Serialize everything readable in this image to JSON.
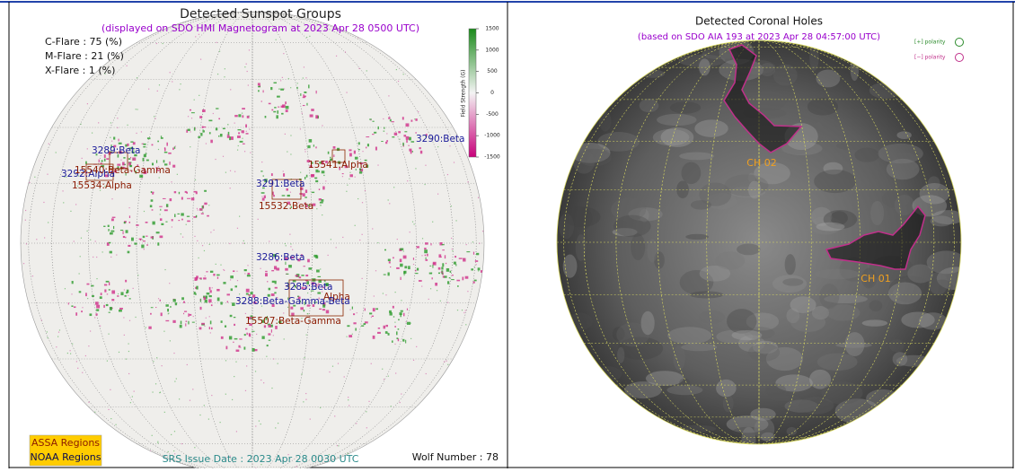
{
  "left_panel": {
    "title": "Detected Sunspot Groups",
    "subtitle": "(displayed on SDO HMI Magnetogram at 2023 Apr 28 0500 UTC)",
    "flare_probabilities": [
      "C-Flare : 75 (%)",
      "M-Flare : 21 (%)",
      "X-Flare :  1 (%)"
    ],
    "colorbar": {
      "label": "Field Strength (G)",
      "ticks": [
        1500,
        1000,
        500,
        0,
        -500,
        -1000,
        -1500
      ]
    },
    "regions": [
      "3289:Beta",
      "3292:Alpha",
      "15540:Beta-Gamma",
      "15534:Alpha",
      "15541:Alpha",
      "3290:Beta",
      "3291:Beta",
      "15532:Beta",
      "3286:Beta",
      "3285:Beta",
      "Alpha",
      "3288:Beta-Gamma-Beta",
      "15507:Beta-Gamma"
    ],
    "legend": [
      "ASSA Regions",
      "NOAA Regions"
    ],
    "srs_issue_date": "SRS Issue Date : 2023 Apr 28 0030 UTC",
    "wolf_number": "Wolf Number : 78"
  },
  "right_panel": {
    "title": "Detected Coronal Holes",
    "subtitle": "(based on SDO AIA 193 at 2023 Apr 28 04:57:00 UTC)",
    "legend": [
      "[+] polarity",
      "[−] polarity"
    ],
    "holes": [
      "CH 02",
      "CH 01"
    ]
  }
}
